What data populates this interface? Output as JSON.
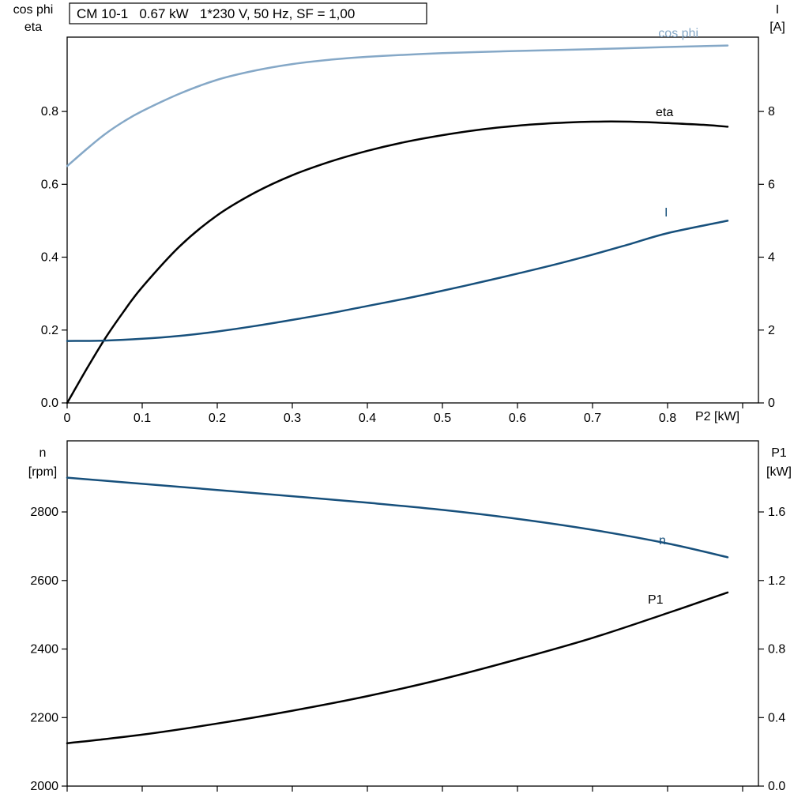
{
  "title_box": {
    "text": "CM 10-1   0.67 kW   1*230 V, 50 Hz, SF = 1,00"
  },
  "colors": {
    "light_blue": "#85a8c7",
    "dark_blue": "#17507c",
    "black": "#000000",
    "axis": "#000000",
    "background": "#ffffff"
  },
  "chart_data": [
    {
      "type": "line",
      "title": "CM 10-1   0.67 kW   1*230 V, 50 Hz, SF = 1,00",
      "xlabel": "P2 [kW]",
      "x_range": [
        0,
        0.921
      ],
      "grid": false,
      "x_ticks": {
        "values": [
          0,
          0.1,
          0.2,
          0.3,
          0.4,
          0.5,
          0.6,
          0.7,
          0.8,
          0.9
        ],
        "labels": [
          "0",
          "0.1",
          "0.2",
          "0.3",
          "0.4",
          "0.5",
          "0.6",
          "0.7",
          "0.8",
          ""
        ]
      },
      "left_axis": {
        "title_lines": [
          "cos phi",
          "eta"
        ],
        "range": [
          0,
          1.004
        ],
        "ticks": {
          "values": [
            0,
            0.2,
            0.4,
            0.6,
            0.8
          ],
          "labels": [
            "0.0",
            "0.2",
            "0.4",
            "0.6",
            "0.8"
          ]
        }
      },
      "right_axis": {
        "title_lines": [
          "I",
          "[A]"
        ],
        "range": [
          0,
          10.04
        ],
        "ticks": {
          "values": [
            0,
            2,
            4,
            6,
            8
          ],
          "labels": [
            "0",
            "2",
            "4",
            "6",
            "8"
          ]
        }
      },
      "series": [
        {
          "name": "cos phi",
          "axis": "left",
          "color": "#85a8c7",
          "x": [
            0,
            0.025,
            0.05,
            0.075,
            0.1,
            0.15,
            0.2,
            0.25,
            0.3,
            0.35,
            0.4,
            0.5,
            0.6,
            0.7,
            0.8,
            0.88
          ],
          "y": [
            0.65,
            0.695,
            0.737,
            0.772,
            0.801,
            0.849,
            0.887,
            0.912,
            0.93,
            0.942,
            0.95,
            0.96,
            0.966,
            0.971,
            0.977,
            0.981
          ]
        },
        {
          "name": "eta",
          "axis": "left",
          "color": "#000000",
          "x": [
            0,
            0.025,
            0.05,
            0.075,
            0.1,
            0.15,
            0.2,
            0.25,
            0.3,
            0.35,
            0.4,
            0.45,
            0.5,
            0.55,
            0.6,
            0.65,
            0.7,
            0.75,
            0.8,
            0.85,
            0.88
          ],
          "y": [
            0,
            0.09,
            0.175,
            0.25,
            0.318,
            0.43,
            0.515,
            0.577,
            0.625,
            0.662,
            0.692,
            0.716,
            0.735,
            0.75,
            0.761,
            0.768,
            0.772,
            0.772,
            0.768,
            0.763,
            0.758
          ]
        },
        {
          "name": "I",
          "axis": "right",
          "color": "#17507c",
          "x": [
            0,
            0.05,
            0.1,
            0.15,
            0.2,
            0.25,
            0.3,
            0.35,
            0.4,
            0.45,
            0.5,
            0.55,
            0.6,
            0.65,
            0.7,
            0.75,
            0.8,
            0.88
          ],
          "y": [
            1.7,
            1.71,
            1.76,
            1.84,
            1.96,
            2.11,
            2.28,
            2.46,
            2.66,
            2.86,
            3.08,
            3.31,
            3.55,
            3.8,
            4.07,
            4.36,
            4.66,
            5.0
          ]
        }
      ]
    },
    {
      "type": "line",
      "title": "",
      "xlabel": "",
      "x_range": [
        0,
        0.921
      ],
      "grid": false,
      "x_ticks": {
        "values": [
          0,
          0.1,
          0.2,
          0.3,
          0.4,
          0.5,
          0.6,
          0.7,
          0.8,
          0.9
        ],
        "labels": [
          "",
          "",
          "",
          "",
          "",
          "",
          "",
          "",
          "",
          ""
        ]
      },
      "left_axis": {
        "title_lines": [
          "n",
          "[rpm]"
        ],
        "range": [
          2000,
          3007.5
        ],
        "ticks": {
          "values": [
            2000,
            2200,
            2400,
            2600,
            2800
          ],
          "labels": [
            "2000",
            "2200",
            "2400",
            "2600",
            "2800"
          ]
        }
      },
      "right_axis": {
        "title_lines": [
          "P1",
          "[kW]"
        ],
        "range": [
          0,
          2.015
        ],
        "ticks": {
          "values": [
            0,
            0.4,
            0.8,
            1.2,
            1.6
          ],
          "labels": [
            "0.0",
            "0.4",
            "0.8",
            "1.2",
            "1.6"
          ]
        }
      },
      "series": [
        {
          "name": "n",
          "axis": "left",
          "color": "#17507c",
          "x": [
            0,
            0.1,
            0.2,
            0.3,
            0.4,
            0.5,
            0.6,
            0.7,
            0.8,
            0.88
          ],
          "y": [
            2900,
            2882,
            2864,
            2846,
            2827,
            2806,
            2780,
            2748,
            2708,
            2668
          ]
        },
        {
          "name": "P1",
          "axis": "right",
          "color": "#000000",
          "x": [
            0,
            0.1,
            0.2,
            0.3,
            0.4,
            0.5,
            0.6,
            0.7,
            0.8,
            0.88
          ],
          "y": [
            0.25,
            0.3,
            0.365,
            0.44,
            0.525,
            0.625,
            0.74,
            0.865,
            1.01,
            1.13
          ]
        }
      ]
    }
  ]
}
